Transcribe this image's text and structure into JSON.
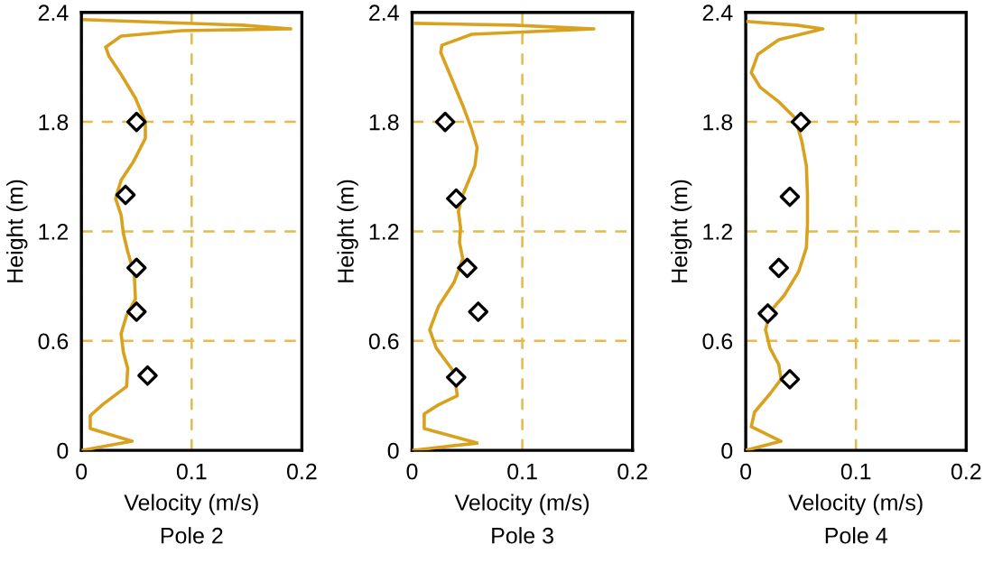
{
  "chart_data": [
    {
      "type": "line",
      "title": "Pole 2",
      "xlabel": "Velocity (m/s)",
      "ylabel": "Height (m)",
      "xlim": [
        0,
        0.2
      ],
      "xticks": [
        0,
        0.1,
        0.2
      ],
      "ylim": [
        0,
        2.4
      ],
      "yticks": [
        0,
        0.6,
        1.2,
        1.8,
        2.4
      ],
      "grid": true,
      "legend": false,
      "series": [
        {
          "type": "line",
          "color": "#d9a21e",
          "x": [
            0,
            0.046,
            0.008,
            0.008,
            0.019,
            0.041,
            0.042,
            0.038,
            0.036,
            0.041,
            0.049,
            0.048,
            0.042,
            0.038,
            0.036,
            0.031,
            0.036,
            0.047,
            0.058,
            0.058,
            0.049,
            0.036,
            0.025,
            0.022,
            0.036,
            0.091,
            0.19,
            0.146,
            0.003
          ],
          "values": [
            0,
            0.05,
            0.12,
            0.19,
            0.25,
            0.35,
            0.45,
            0.54,
            0.64,
            0.74,
            0.83,
            0.96,
            1.09,
            1.19,
            1.29,
            1.38,
            1.48,
            1.58,
            1.71,
            1.8,
            1.93,
            2.06,
            2.16,
            2.21,
            2.27,
            2.3,
            2.31,
            2.33,
            2.36
          ]
        },
        {
          "type": "scatter",
          "color": "#000000",
          "marker": "diamond",
          "x": [
            0.05,
            0.04,
            0.05,
            0.05,
            0.06
          ],
          "values": [
            1.8,
            1.4,
            1.0,
            0.76,
            0.41
          ]
        }
      ]
    },
    {
      "type": "line",
      "title": "Pole 3",
      "xlabel": "Velocity (m/s)",
      "ylabel": "Height (m)",
      "xlim": [
        0,
        0.2
      ],
      "xticks": [
        0,
        0.1,
        0.2
      ],
      "ylim": [
        0,
        2.4
      ],
      "yticks": [
        0,
        0.6,
        1.2,
        1.8,
        2.4
      ],
      "grid": true,
      "legend": false,
      "series": [
        {
          "type": "line",
          "color": "#d9a21e",
          "x": [
            0,
            0.059,
            0.011,
            0.011,
            0.024,
            0.041,
            0.038,
            0.022,
            0.016,
            0.024,
            0.038,
            0.046,
            0.043,
            0.044,
            0.042,
            0.046,
            0.057,
            0.059,
            0.054,
            0.046,
            0.035,
            0.026,
            0.027,
            0.054,
            0.165,
            0.092,
            0.003
          ],
          "values": [
            0,
            0.04,
            0.12,
            0.2,
            0.25,
            0.3,
            0.43,
            0.56,
            0.66,
            0.79,
            0.92,
            1.05,
            1.14,
            1.22,
            1.31,
            1.4,
            1.56,
            1.66,
            1.76,
            1.89,
            2.05,
            2.18,
            2.22,
            2.28,
            2.31,
            2.33,
            2.34
          ]
        },
        {
          "type": "scatter",
          "color": "#000000",
          "marker": "diamond",
          "x": [
            0.03,
            0.04,
            0.05,
            0.06,
            0.04
          ],
          "values": [
            1.8,
            1.38,
            1.0,
            0.76,
            0.4
          ]
        }
      ]
    },
    {
      "type": "line",
      "title": "Pole 4",
      "xlabel": "Velocity (m/s)",
      "ylabel": "Height (m)",
      "xlim": [
        0,
        0.2
      ],
      "xticks": [
        0,
        0.1,
        0.2
      ],
      "ylim": [
        0,
        2.4
      ],
      "yticks": [
        0,
        0.6,
        1.2,
        1.8,
        2.4
      ],
      "grid": true,
      "legend": false,
      "series": [
        {
          "type": "line",
          "color": "#d9a21e",
          "x": [
            0,
            0.032,
            0.005,
            0.008,
            0.022,
            0.032,
            0.03,
            0.022,
            0.018,
            0.022,
            0.035,
            0.048,
            0.055,
            0.056,
            0.056,
            0.055,
            0.051,
            0.045,
            0.03,
            0.013,
            0.005,
            0.011,
            0.03,
            0.07,
            0.046,
            0.002
          ],
          "values": [
            0,
            0.05,
            0.13,
            0.21,
            0.31,
            0.39,
            0.47,
            0.56,
            0.66,
            0.76,
            0.85,
            0.98,
            1.11,
            1.24,
            1.4,
            1.56,
            1.69,
            1.82,
            1.91,
            1.99,
            2.07,
            2.17,
            2.25,
            2.31,
            2.33,
            2.35
          ]
        },
        {
          "type": "scatter",
          "color": "#000000",
          "marker": "diamond",
          "x": [
            0.05,
            0.04,
            0.03,
            0.02,
            0.04
          ],
          "values": [
            1.8,
            1.39,
            1.0,
            0.75,
            0.39
          ]
        }
      ]
    }
  ]
}
